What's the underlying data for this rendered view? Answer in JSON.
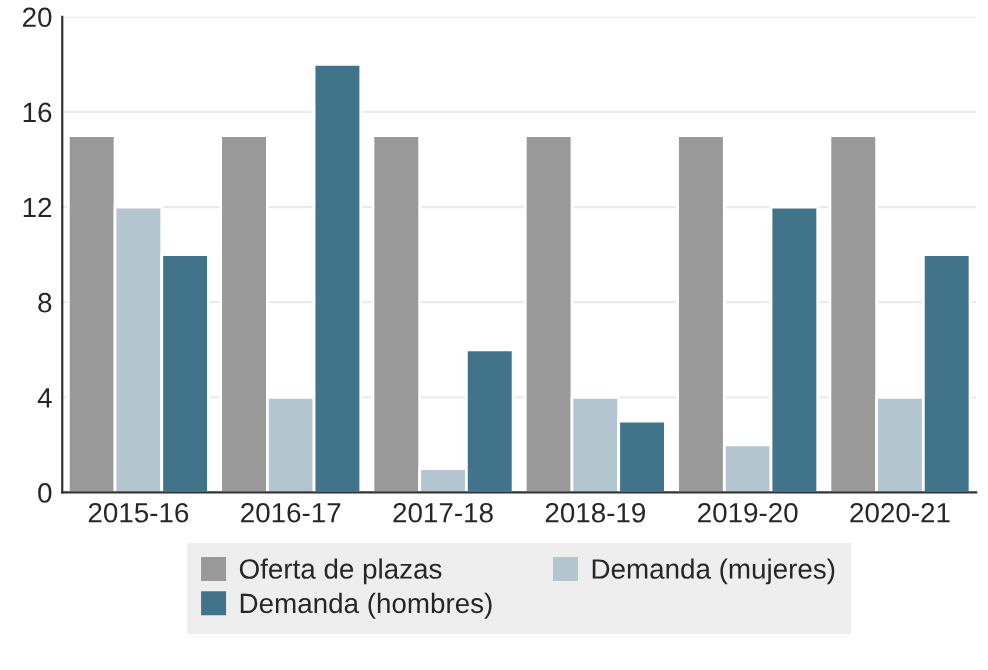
{
  "chart_data": {
    "type": "bar",
    "categories": [
      "2015-16",
      "2016-17",
      "2017-18",
      "2018-19",
      "2019-20",
      "2020-21"
    ],
    "series": [
      {
        "name": "Oferta de plazas",
        "color": "#999999",
        "values": [
          15,
          15,
          15,
          15,
          15,
          15
        ]
      },
      {
        "name": "Demanda (mujeres)",
        "color": "#b3c5cf",
        "values": [
          12,
          4,
          1,
          4,
          2,
          4
        ]
      },
      {
        "name": "Demanda (hombres)",
        "color": "#41748b",
        "values": [
          10,
          18,
          6,
          3,
          12,
          10
        ]
      }
    ],
    "ylim": [
      0,
      20
    ],
    "yticks": [
      0,
      4,
      8,
      12,
      16,
      20
    ],
    "grid": "y",
    "legend": "bottom"
  }
}
